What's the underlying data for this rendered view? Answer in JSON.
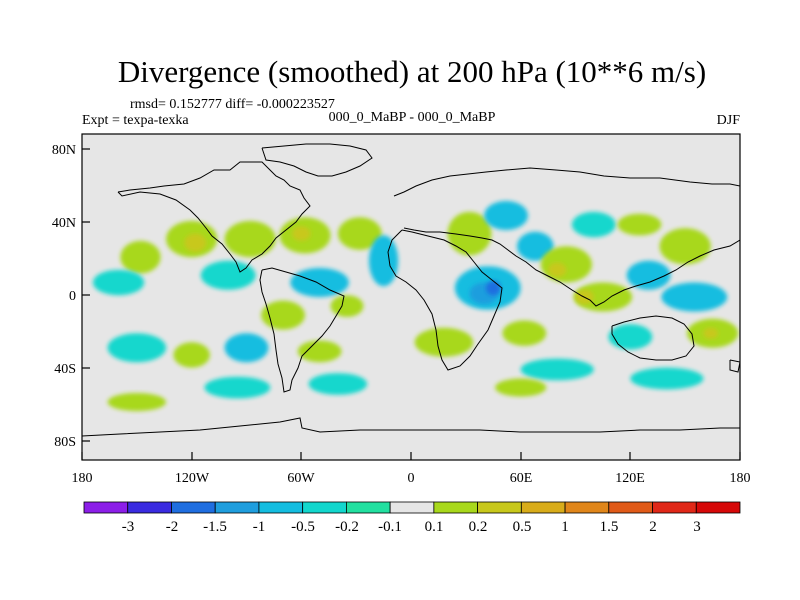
{
  "chart_data": {
    "type": "heatmap",
    "title": "Divergence (smoothed) at 200 hPa (10**6 m/s)",
    "stats_line": "rmsd= 0.152777 diff= -0.000223527",
    "left_label": "Expt = texpa-texka",
    "center_label": "000_0_MaBP - 000_0_MaBP",
    "right_label": "DJF",
    "x_axis": {
      "range": [
        -180,
        180
      ],
      "ticks": [
        -180,
        -120,
        -60,
        0,
        60,
        120,
        180
      ],
      "tick_labels": [
        "180",
        "120W",
        "60W",
        "0",
        "60E",
        "120E",
        "180"
      ]
    },
    "y_axis": {
      "range": [
        -90,
        90
      ],
      "ticks": [
        80,
        40,
        0,
        -40,
        -80
      ],
      "tick_labels": [
        "80N",
        "40N",
        "0",
        "40S",
        "80S"
      ]
    },
    "colorbar": {
      "labels": [
        "-3",
        "-2",
        "-1.5",
        "-1",
        "-0.5",
        "-0.2",
        "-0.1",
        "0.1",
        "0.2",
        "0.5",
        "1",
        "1.5",
        "2",
        "3"
      ],
      "colors": [
        "#8c1ee8",
        "#3a2be0",
        "#1f6ee0",
        "#1f9ede",
        "#14bde0",
        "#12d7cd",
        "#22e0a0",
        "#e6e6e6",
        "#a8d81c",
        "#c8c81c",
        "#d8ac1a",
        "#e0861a",
        "#e05a18",
        "#e02818",
        "#d60808"
      ]
    },
    "blobs": [
      {
        "lon": -148,
        "lat": 22,
        "rx": 11,
        "ry": 9,
        "level": "pos_0.2"
      },
      {
        "lon": -120,
        "lat": 32,
        "rx": 14,
        "ry": 10,
        "level": "pos_0.2"
      },
      {
        "lon": -118,
        "lat": 30,
        "rx": 6,
        "ry": 5,
        "level": "pos_0.5"
      },
      {
        "lon": -88,
        "lat": 32,
        "rx": 14,
        "ry": 10,
        "level": "pos_0.2"
      },
      {
        "lon": -58,
        "lat": 34,
        "rx": 14,
        "ry": 10,
        "level": "pos_0.2"
      },
      {
        "lon": -60,
        "lat": 35,
        "rx": 5,
        "ry": 4,
        "level": "pos_0.5"
      },
      {
        "lon": -28,
        "lat": 35,
        "rx": 12,
        "ry": 9,
        "level": "pos_0.2"
      },
      {
        "lon": -100,
        "lat": 12,
        "rx": 15,
        "ry": 8,
        "level": "neg_0.1"
      },
      {
        "lon": -160,
        "lat": 8,
        "rx": 14,
        "ry": 7,
        "level": "neg_0.1"
      },
      {
        "lon": -50,
        "lat": 8,
        "rx": 16,
        "ry": 8,
        "level": "neg_0.2"
      },
      {
        "lon": -15,
        "lat": 20,
        "rx": 8,
        "ry": 14,
        "level": "neg_0.2"
      },
      {
        "lon": -70,
        "lat": -10,
        "rx": 12,
        "ry": 8,
        "level": "pos_0.2"
      },
      {
        "lon": -35,
        "lat": -5,
        "rx": 9,
        "ry": 6,
        "level": "pos_0.2"
      },
      {
        "lon": -150,
        "lat": -28,
        "rx": 16,
        "ry": 8,
        "level": "neg_0.1"
      },
      {
        "lon": -120,
        "lat": -32,
        "rx": 10,
        "ry": 7,
        "level": "pos_0.2"
      },
      {
        "lon": -90,
        "lat": -28,
        "rx": 12,
        "ry": 8,
        "level": "neg_0.2"
      },
      {
        "lon": -50,
        "lat": -30,
        "rx": 12,
        "ry": 6,
        "level": "pos_0.2"
      },
      {
        "lon": -150,
        "lat": -58,
        "rx": 16,
        "ry": 5,
        "level": "pos_0.2"
      },
      {
        "lon": -95,
        "lat": -50,
        "rx": 18,
        "ry": 6,
        "level": "neg_0.1"
      },
      {
        "lon": -40,
        "lat": -48,
        "rx": 16,
        "ry": 6,
        "level": "neg_0.1"
      },
      {
        "lon": 32,
        "lat": 35,
        "rx": 12,
        "ry": 12,
        "level": "pos_0.2"
      },
      {
        "lon": 52,
        "lat": 45,
        "rx": 12,
        "ry": 8,
        "level": "neg_0.2"
      },
      {
        "lon": 68,
        "lat": 28,
        "rx": 10,
        "ry": 8,
        "level": "neg_0.2"
      },
      {
        "lon": 42,
        "lat": 5,
        "rx": 18,
        "ry": 12,
        "level": "neg_0.2"
      },
      {
        "lon": 40,
        "lat": 2,
        "rx": 8,
        "ry": 6,
        "level": "neg_0.5"
      },
      {
        "lon": 45,
        "lat": 5,
        "rx": 4,
        "ry": 4,
        "level": "neg_1"
      },
      {
        "lon": 18,
        "lat": -25,
        "rx": 16,
        "ry": 8,
        "level": "pos_0.2"
      },
      {
        "lon": 62,
        "lat": -20,
        "rx": 12,
        "ry": 7,
        "level": "pos_0.2"
      },
      {
        "lon": 85,
        "lat": 18,
        "rx": 14,
        "ry": 10,
        "level": "pos_0.2"
      },
      {
        "lon": 80,
        "lat": 15,
        "rx": 5,
        "ry": 4,
        "level": "pos_0.5"
      },
      {
        "lon": 105,
        "lat": 0,
        "rx": 16,
        "ry": 8,
        "level": "pos_0.2"
      },
      {
        "lon": 95,
        "lat": 0,
        "rx": 5,
        "ry": 4,
        "level": "pos_0.5"
      },
      {
        "lon": 130,
        "lat": 12,
        "rx": 12,
        "ry": 8,
        "level": "neg_0.2"
      },
      {
        "lon": 150,
        "lat": 28,
        "rx": 14,
        "ry": 10,
        "level": "pos_0.2"
      },
      {
        "lon": 155,
        "lat": 0,
        "rx": 18,
        "ry": 8,
        "level": "neg_0.2"
      },
      {
        "lon": 165,
        "lat": -20,
        "rx": 14,
        "ry": 8,
        "level": "pos_0.2"
      },
      {
        "lon": 164,
        "lat": -20,
        "rx": 4,
        "ry": 3,
        "level": "pos_0.5"
      },
      {
        "lon": 120,
        "lat": -22,
        "rx": 12,
        "ry": 7,
        "level": "neg_0.1"
      },
      {
        "lon": 100,
        "lat": 40,
        "rx": 12,
        "ry": 7,
        "level": "neg_0.1"
      },
      {
        "lon": 125,
        "lat": 40,
        "rx": 12,
        "ry": 6,
        "level": "pos_0.2"
      },
      {
        "lon": 80,
        "lat": -40,
        "rx": 20,
        "ry": 6,
        "level": "neg_0.1"
      },
      {
        "lon": 140,
        "lat": -45,
        "rx": 20,
        "ry": 6,
        "level": "neg_0.1"
      },
      {
        "lon": 60,
        "lat": -50,
        "rx": 14,
        "ry": 5,
        "level": "pos_0.2"
      }
    ],
    "level_colors": {
      "neg_1": "#1f6ee0",
      "neg_0.5": "#1f9ede",
      "neg_0.2": "#14bde0",
      "neg_0.1": "#12d7cd",
      "pos_0.2": "#a8d81c",
      "pos_0.5": "#c8c81c"
    },
    "background": "#e6e6e6",
    "grid": false
  }
}
